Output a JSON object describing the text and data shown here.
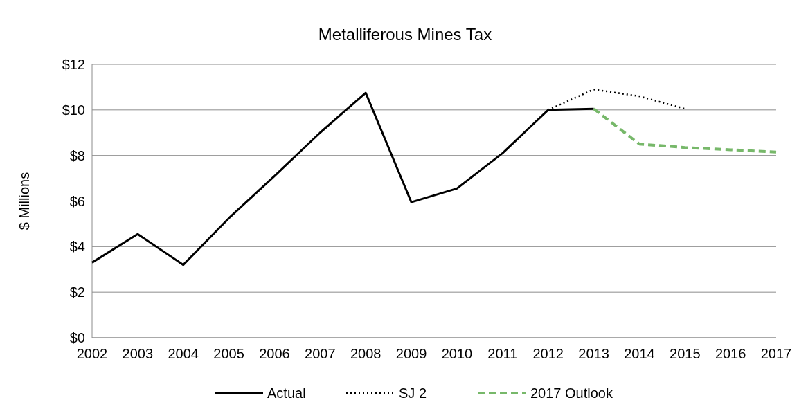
{
  "chart_data": {
    "type": "line",
    "title": "Metalliferous Mines Tax",
    "ylabel": "$ Millions",
    "categories": [
      "2002",
      "2003",
      "2004",
      "2005",
      "2006",
      "2007",
      "2008",
      "2009",
      "2010",
      "2011",
      "2012",
      "2013",
      "2014",
      "2015",
      "2016",
      "2017"
    ],
    "series": [
      {
        "name": "Actual",
        "color": "#000000",
        "line_style": "solid",
        "values": [
          3.3,
          4.55,
          3.2,
          5.25,
          7.1,
          9.0,
          10.75,
          5.95,
          6.55,
          8.1,
          10.0,
          10.05,
          null,
          null,
          null,
          null
        ]
      },
      {
        "name": "SJ 2",
        "color": "#000000",
        "line_style": "dotted",
        "values": [
          null,
          null,
          null,
          null,
          null,
          null,
          null,
          null,
          null,
          null,
          10.0,
          10.9,
          10.6,
          10.05,
          null,
          null
        ]
      },
      {
        "name": "2017 Outlook",
        "color": "#77b86a",
        "line_style": "dashed",
        "values": [
          null,
          null,
          null,
          null,
          null,
          null,
          null,
          null,
          null,
          null,
          null,
          10.05,
          8.5,
          8.35,
          8.25,
          8.15
        ]
      }
    ],
    "ylim": [
      0,
      12
    ],
    "yticks": [
      {
        "value": 0,
        "label": "$0"
      },
      {
        "value": 2,
        "label": "$2"
      },
      {
        "value": 4,
        "label": "$4"
      },
      {
        "value": 6,
        "label": "$6"
      },
      {
        "value": 8,
        "label": "$8"
      },
      {
        "value": 10,
        "label": "$10"
      },
      {
        "value": 12,
        "label": "$12"
      }
    ],
    "grid": "y",
    "legend": "bottom",
    "marker": "none"
  }
}
